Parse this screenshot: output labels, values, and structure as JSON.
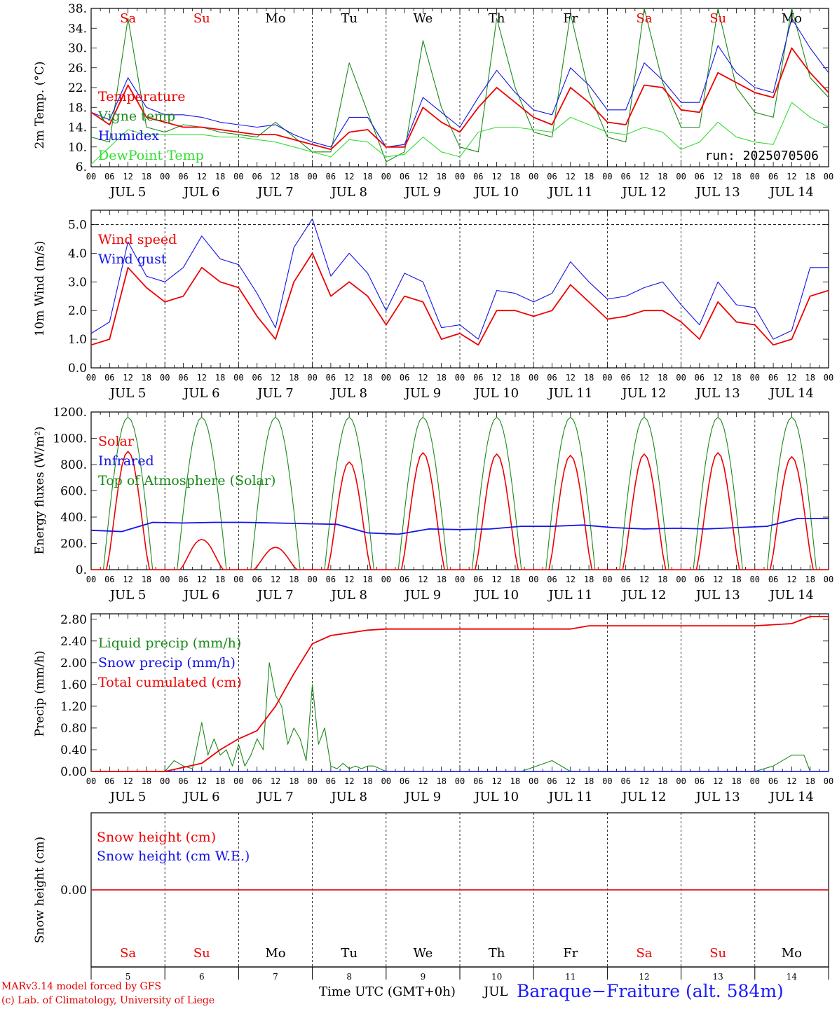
{
  "colors": {
    "red": "#ee0000",
    "green": "#1a8a1a",
    "blue": "#1414e6",
    "lime": "#33dd33",
    "weekend": "#ee0000",
    "weekday": "#000000"
  },
  "days": [
    "JUL  5",
    "JUL  6",
    "JUL  7",
    "JUL  8",
    "JUL  9",
    "JUL 10",
    "JUL 11",
    "JUL 12",
    "JUL 13",
    "JUL 14"
  ],
  "day_numbers": [
    "5",
    "6",
    "7",
    "8",
    "9",
    "10",
    "11",
    "12",
    "13",
    "14"
  ],
  "weekdays": [
    "Sa",
    "Su",
    "Mo",
    "Tu",
    "We",
    "Th",
    "Fr",
    "Sa",
    "Su",
    "Mo"
  ],
  "weekend_flags": [
    true,
    true,
    false,
    false,
    false,
    false,
    false,
    true,
    true,
    false
  ],
  "hour_ticks": [
    "00",
    "06",
    "12",
    "18"
  ],
  "run_label": "run: 2025070506",
  "footer": {
    "credit_line1": "MARv3.14 model forced by GFS",
    "credit_line2": "(c) Lab. of Climatology, University of Liege",
    "xaxis_title": "Time UTC (GMT+0h)",
    "month": "JUL",
    "station": "Baraque−Fraiture (alt. 584m)"
  },
  "chart_data": [
    {
      "type": "line",
      "ylabel": "2m Temp. (°C)",
      "ylim": [
        6,
        38
      ],
      "yticks": [
        "6.",
        "10.",
        "14.",
        "18.",
        "22.",
        "26.",
        "30.",
        "34.",
        "38."
      ],
      "x_hours": [
        0,
        6,
        12,
        18,
        24,
        30,
        36,
        42,
        48,
        54,
        60,
        66,
        72,
        78,
        84,
        90,
        96,
        102,
        108,
        114,
        120,
        126,
        132,
        138,
        144,
        150,
        156,
        162,
        168,
        174,
        180,
        186,
        192,
        198,
        204,
        210,
        216,
        222,
        228,
        234,
        240
      ],
      "series": [
        {
          "name": "Temperature",
          "color": "red",
          "values": [
            17,
            14.5,
            22.5,
            16,
            15,
            14,
            14,
            13.5,
            13,
            12.5,
            12.5,
            11.5,
            10.5,
            9.5,
            13,
            13.5,
            10,
            10,
            18,
            15,
            13,
            18,
            22,
            19,
            16,
            14.5,
            22,
            19,
            15,
            14.5,
            22.5,
            22,
            17.5,
            17,
            25,
            23,
            21,
            20,
            30,
            25,
            21
          ]
        },
        {
          "name": "Vigne temp",
          "color": "green",
          "values": [
            12,
            11,
            36,
            14,
            13,
            14.5,
            14,
            13,
            12.5,
            12,
            15,
            12,
            9,
            9,
            27,
            17,
            7,
            9,
            31.5,
            18,
            10,
            9,
            36,
            22,
            13,
            12,
            37,
            21,
            12,
            11,
            38,
            23,
            14,
            14,
            38,
            22,
            17,
            16,
            39,
            24,
            20
          ]
        },
        {
          "name": "Humidex",
          "color": "blue",
          "values": [
            17,
            15.5,
            24,
            18,
            16.5,
            16.5,
            16,
            15,
            14.5,
            14,
            14.5,
            12.5,
            11,
            10,
            16,
            16,
            10,
            10.5,
            20,
            17,
            14,
            20,
            25.5,
            21,
            17.5,
            16.5,
            26,
            22.5,
            17.5,
            17.5,
            27,
            23.5,
            19,
            19,
            30.5,
            25,
            22,
            21,
            36,
            30,
            25
          ]
        },
        {
          "name": "DewPoint Temp",
          "color": "lime",
          "values": [
            6.5,
            10,
            13.5,
            12.5,
            12.5,
            12.5,
            12.5,
            12,
            12,
            11.5,
            11,
            10,
            9,
            8,
            11.5,
            11,
            8,
            8.5,
            12,
            9,
            8,
            13,
            14,
            14,
            13.5,
            13,
            16,
            14.5,
            13,
            12.5,
            14,
            13,
            9.5,
            11,
            15,
            12,
            11,
            10.5,
            19,
            16,
            14
          ]
        }
      ]
    },
    {
      "type": "line",
      "ylabel": "10m Wind (m/s)",
      "ylim": [
        0,
        5.5
      ],
      "reference_line": 5.0,
      "yticks": [
        "0.0",
        "1.0",
        "2.0",
        "3.0",
        "4.0",
        "5.0"
      ],
      "x_hours": [
        0,
        6,
        12,
        18,
        24,
        30,
        36,
        42,
        48,
        54,
        60,
        66,
        72,
        78,
        84,
        90,
        96,
        102,
        108,
        114,
        120,
        126,
        132,
        138,
        144,
        150,
        156,
        162,
        168,
        174,
        180,
        186,
        192,
        198,
        204,
        210,
        216,
        222,
        228,
        234,
        240
      ],
      "series": [
        {
          "name": "Wind speed",
          "color": "red",
          "values": [
            0.8,
            1,
            3.5,
            2.8,
            2.3,
            2.5,
            3.5,
            3.0,
            2.8,
            1.8,
            1.0,
            3.0,
            4.0,
            2.5,
            3.0,
            2.5,
            1.5,
            2.5,
            2.3,
            1.0,
            1.2,
            0.8,
            2.0,
            2.0,
            1.8,
            2.0,
            2.9,
            2.3,
            1.7,
            1.8,
            2.0,
            2.0,
            1.6,
            1.0,
            2.3,
            1.6,
            1.5,
            0.8,
            1.0,
            2.5,
            2.7
          ]
        },
        {
          "name": "Wind gust",
          "color": "blue",
          "values": [
            1.2,
            1.6,
            4.4,
            3.2,
            3.0,
            3.5,
            4.6,
            3.8,
            3.6,
            2.6,
            1.4,
            4.2,
            5.2,
            3.2,
            4.0,
            3.3,
            2.0,
            3.3,
            3.0,
            1.4,
            1.5,
            1.0,
            2.7,
            2.6,
            2.3,
            2.6,
            3.7,
            3.0,
            2.4,
            2.5,
            2.8,
            3.0,
            2.2,
            1.5,
            3.0,
            2.2,
            2.1,
            1.0,
            1.3,
            3.5,
            3.5
          ]
        }
      ]
    },
    {
      "type": "line",
      "ylabel": "Energy fluxes (W/m²)",
      "ylim": [
        0,
        1200
      ],
      "yticks": [
        "0.",
        "200.",
        "400.",
        "600.",
        "800.",
        "1000.",
        "1200."
      ],
      "toa_peak": 1160,
      "solar_peaks": [
        900,
        230,
        170,
        820,
        890,
        880,
        870,
        880,
        890,
        860
      ],
      "infrared_values": [
        300,
        290,
        360,
        355,
        360,
        360,
        355,
        350,
        345,
        280,
        270,
        310,
        305,
        310,
        330,
        330,
        340,
        320,
        310,
        315,
        310,
        320,
        330,
        390,
        390
      ],
      "series": [
        {
          "name": "Solar",
          "color": "red"
        },
        {
          "name": "Infrared",
          "color": "blue"
        },
        {
          "name": "Top of Atmosphere (Solar)",
          "color": "green"
        }
      ]
    },
    {
      "type": "line",
      "ylabel": "Precip (mm/h)",
      "ylim": [
        0,
        2.9
      ],
      "yticks": [
        "0.00",
        "0.40",
        "0.80",
        "1.20",
        "1.60",
        "2.00",
        "2.40",
        "2.80"
      ],
      "liquid_x": [
        24,
        27,
        30,
        33,
        36,
        38,
        40,
        42,
        44,
        46,
        48,
        50,
        52,
        54,
        56,
        58,
        60,
        62,
        64,
        66,
        68,
        70,
        72,
        74,
        76,
        78,
        80,
        82,
        84,
        86,
        88,
        90,
        92,
        96,
        132,
        140,
        150,
        156,
        160,
        216,
        222,
        228,
        232,
        234
      ],
      "liquid_values": [
        0,
        0.2,
        0.1,
        0.05,
        0.9,
        0.3,
        0.6,
        0.3,
        0.4,
        0.1,
        0.5,
        0.1,
        0.3,
        0.6,
        0.4,
        2.0,
        1.4,
        1.2,
        0.5,
        0.8,
        0.6,
        0.2,
        1.6,
        0.5,
        0.8,
        0.1,
        0.05,
        0.15,
        0.05,
        0.1,
        0.05,
        0.1,
        0.1,
        0,
        0,
        0,
        0.2,
        0,
        0,
        0,
        0.1,
        0.3,
        0.3,
        0
      ],
      "cumulated_x": [
        0,
        24,
        36,
        42,
        48,
        54,
        60,
        66,
        72,
        78,
        84,
        90,
        96,
        108,
        120,
        156,
        162,
        216,
        228,
        234,
        240
      ],
      "cumulated_values": [
        0,
        0,
        0.15,
        0.4,
        0.6,
        0.75,
        1.2,
        1.8,
        2.35,
        2.5,
        2.55,
        2.6,
        2.62,
        2.62,
        2.62,
        2.62,
        2.68,
        2.68,
        2.72,
        2.85,
        2.85
      ],
      "series": [
        {
          "name": "Liquid precip (mm/h)",
          "color": "green"
        },
        {
          "name": "Snow precip (mm/h)",
          "color": "blue"
        },
        {
          "name": "Total cumulated (cm)",
          "color": "red"
        }
      ]
    },
    {
      "type": "line",
      "ylabel": "Snow height (cm)",
      "ylim": [
        -1,
        1
      ],
      "yticks": [
        "0.00"
      ],
      "series": [
        {
          "name": "Snow height (cm)",
          "color": "red",
          "values": [
            0,
            0
          ]
        },
        {
          "name": "Snow height (cm W.E.)",
          "color": "blue",
          "values": [
            0,
            0
          ]
        }
      ]
    }
  ]
}
